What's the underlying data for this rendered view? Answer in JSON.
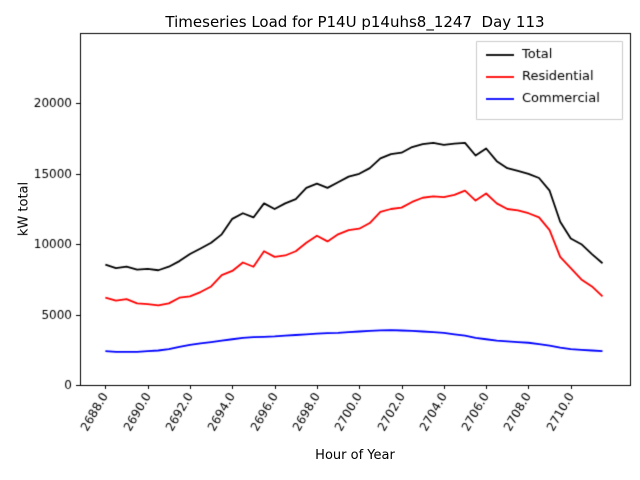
{
  "figure": {
    "title": "Timeseries Load for P14U p14uhs8_1247  Day 113",
    "xlabel": "Hour of Year",
    "ylabel": "kW total"
  },
  "chart_data": {
    "type": "line",
    "title": "Timeseries Load for P14U p14uhs8_1247  Day 113",
    "xlabel": "Hour of Year",
    "ylabel": "kW total",
    "xlim": [
      2686.8,
      2712.8
    ],
    "ylim": [
      0,
      25000
    ],
    "x_ticks": [
      2688,
      2690,
      2692,
      2694,
      2696,
      2698,
      2700,
      2702,
      2704,
      2706,
      2708,
      2710
    ],
    "x_tick_labels": [
      "2688.0",
      "2690.0",
      "2692.0",
      "2694.0",
      "2696.0",
      "2698.0",
      "2700.0",
      "2702.0",
      "2704.0",
      "2706.0",
      "2708.0",
      "2710.0"
    ],
    "y_ticks": [
      0,
      5000,
      10000,
      15000,
      20000
    ],
    "y_tick_labels": [
      "0",
      "5000",
      "10000",
      "15000",
      "20000"
    ],
    "grid": false,
    "legend_position": "upper right",
    "x": [
      2688.0,
      2688.5,
      2689.0,
      2689.5,
      2690.0,
      2690.5,
      2691.0,
      2691.5,
      2692.0,
      2692.5,
      2693.0,
      2693.5,
      2694.0,
      2694.5,
      2695.0,
      2695.5,
      2696.0,
      2696.5,
      2697.0,
      2697.5,
      2698.0,
      2698.5,
      2699.0,
      2699.5,
      2700.0,
      2700.5,
      2701.0,
      2701.5,
      2702.0,
      2702.5,
      2703.0,
      2703.5,
      2704.0,
      2704.5,
      2705.0,
      2705.5,
      2706.0,
      2706.5,
      2707.0,
      2707.5,
      2708.0,
      2708.5,
      2709.0,
      2709.5,
      2710.0,
      2710.5,
      2711.0,
      2711.5
    ],
    "series": [
      {
        "name": "Total",
        "color": "#000000",
        "values": [
          8550,
          8300,
          8400,
          8200,
          8250,
          8150,
          8400,
          8800,
          9300,
          9700,
          10100,
          10700,
          11800,
          12200,
          11900,
          12900,
          12500,
          12900,
          13200,
          14000,
          14300,
          14000,
          14400,
          14800,
          15000,
          15400,
          16100,
          16400,
          16500,
          16900,
          17100,
          17200,
          17050,
          17150,
          17200,
          16300,
          16800,
          15900,
          15400,
          15200,
          15000,
          14700,
          13800,
          11600,
          10400,
          10000,
          9300,
          8650
        ]
      },
      {
        "name": "Residential",
        "color": "#ff0000",
        "values": [
          6200,
          6000,
          6100,
          5800,
          5750,
          5650,
          5800,
          6200,
          6300,
          6600,
          7000,
          7800,
          8100,
          8700,
          8400,
          9500,
          9100,
          9200,
          9500,
          10100,
          10600,
          10200,
          10700,
          11000,
          11100,
          11500,
          12300,
          12500,
          12600,
          13000,
          13300,
          13400,
          13350,
          13500,
          13800,
          13100,
          13600,
          12900,
          12500,
          12400,
          12200,
          11900,
          11000,
          9100,
          8300,
          7500,
          7000,
          6300
        ]
      },
      {
        "name": "Commercial",
        "color": "#0000ff",
        "values": [
          2400,
          2350,
          2350,
          2350,
          2400,
          2450,
          2550,
          2700,
          2850,
          2950,
          3050,
          3150,
          3250,
          3350,
          3400,
          3420,
          3450,
          3500,
          3550,
          3600,
          3650,
          3680,
          3700,
          3750,
          3800,
          3850,
          3880,
          3900,
          3870,
          3850,
          3800,
          3750,
          3700,
          3600,
          3500,
          3350,
          3250,
          3150,
          3100,
          3050,
          3000,
          2900,
          2800,
          2650,
          2550,
          2500,
          2450,
          2400
        ]
      }
    ]
  }
}
